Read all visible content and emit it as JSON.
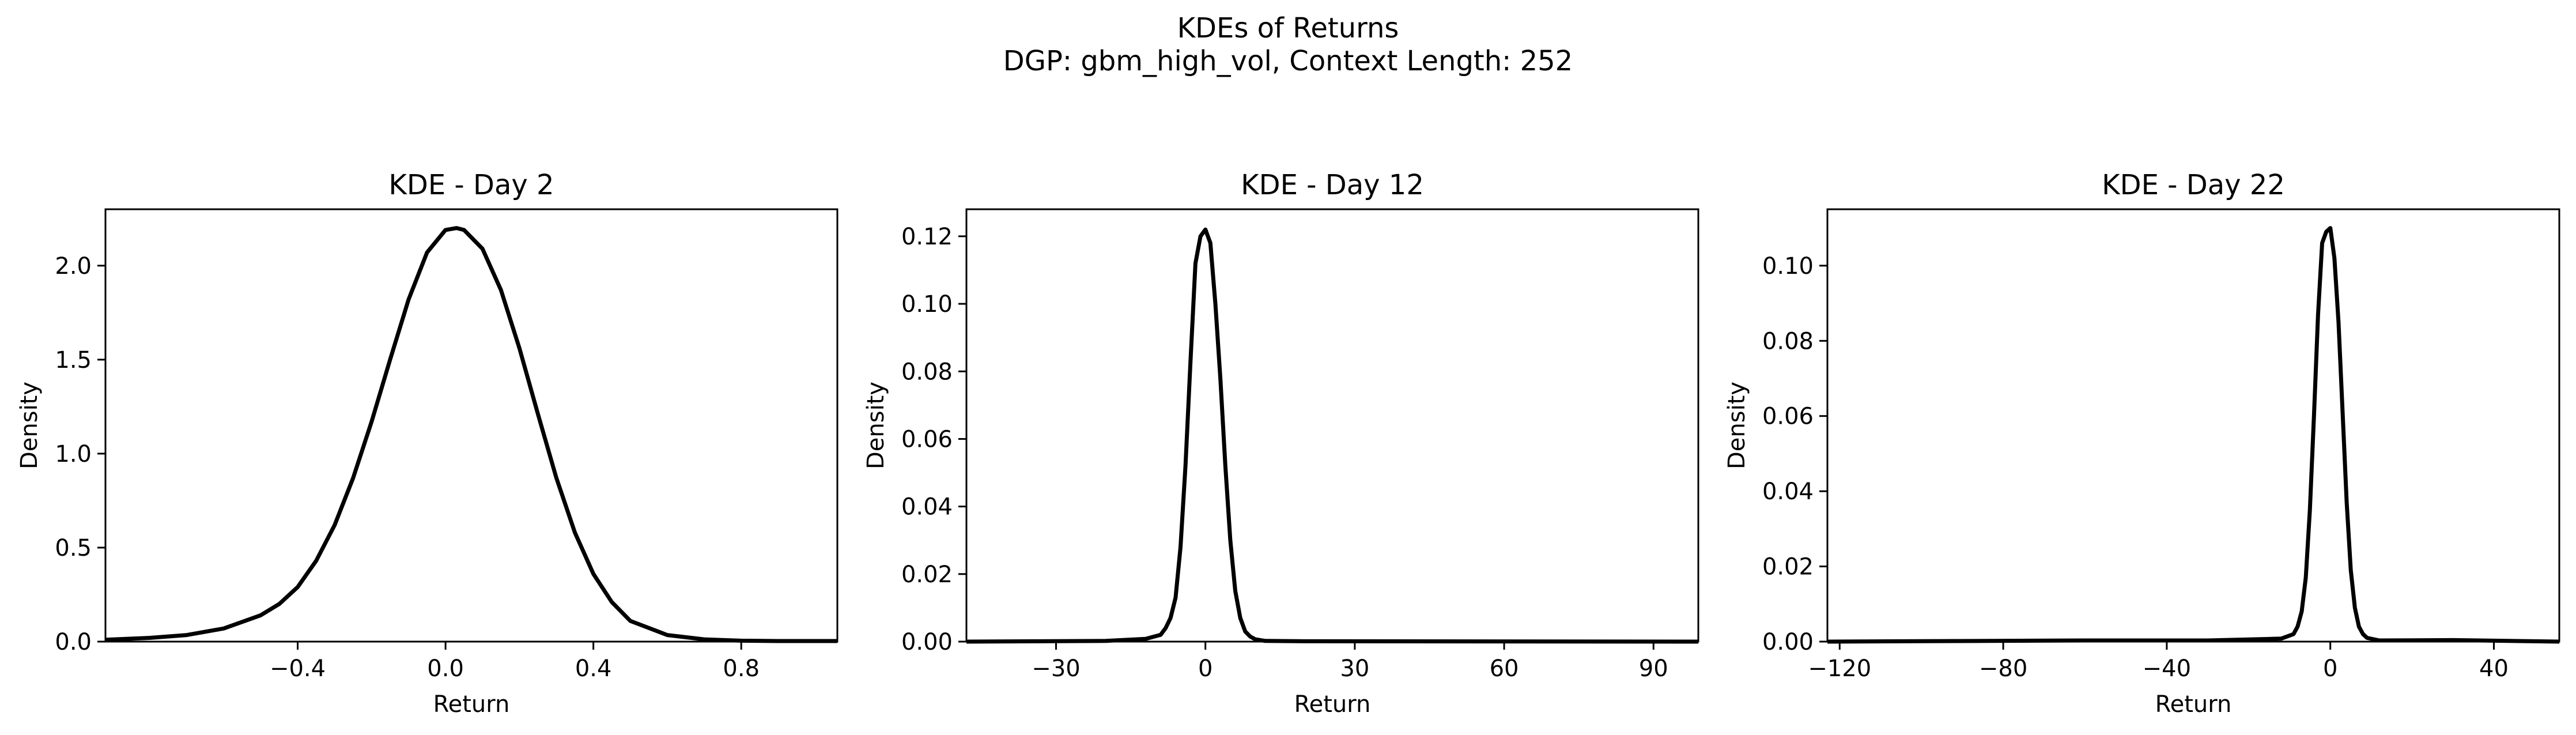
{
  "figure": {
    "title_line1": "KDEs of Returns",
    "title_line2": "DGP: gbm_high_vol, Context Length: 252"
  },
  "chart_data": [
    {
      "type": "line",
      "title": "KDE - Day 2",
      "xlabel": "Return",
      "ylabel": "Density",
      "xlim": [
        -0.92,
        1.06
      ],
      "ylim": [
        0,
        2.3
      ],
      "xticks": [
        -0.4,
        0.0,
        0.4,
        0.8
      ],
      "xtick_labels": [
        "−0.4",
        "0.0",
        "0.4",
        "0.8"
      ],
      "yticks": [
        0.0,
        0.5,
        1.0,
        1.5,
        2.0
      ],
      "ytick_labels": [
        "0.0",
        "0.5",
        "1.0",
        "1.5",
        "2.0"
      ],
      "grid": false,
      "series": [
        {
          "color": "#000000",
          "x": [
            -0.92,
            -0.8,
            -0.7,
            -0.6,
            -0.5,
            -0.45,
            -0.4,
            -0.35,
            -0.3,
            -0.25,
            -0.2,
            -0.15,
            -0.1,
            -0.05,
            0.0,
            0.03,
            0.05,
            0.1,
            0.15,
            0.2,
            0.25,
            0.3,
            0.35,
            0.4,
            0.45,
            0.5,
            0.6,
            0.7,
            0.8,
            0.9,
            1.06
          ],
          "y": [
            0.01,
            0.02,
            0.035,
            0.07,
            0.14,
            0.2,
            0.29,
            0.43,
            0.62,
            0.87,
            1.17,
            1.5,
            1.82,
            2.07,
            2.19,
            2.2,
            2.19,
            2.09,
            1.87,
            1.56,
            1.21,
            0.87,
            0.58,
            0.36,
            0.21,
            0.11,
            0.035,
            0.012,
            0.005,
            0.003,
            0.003
          ]
        }
      ]
    },
    {
      "type": "line",
      "title": "KDE - Day 12",
      "xlabel": "Return",
      "ylabel": "Density",
      "xlim": [
        -48,
        99
      ],
      "ylim": [
        0,
        0.128
      ],
      "xticks": [
        -30,
        0,
        30,
        60,
        90
      ],
      "xtick_labels": [
        "−30",
        "0",
        "30",
        "60",
        "90"
      ],
      "yticks": [
        0.0,
        0.02,
        0.04,
        0.06,
        0.08,
        0.1,
        0.12
      ],
      "ytick_labels": [
        "0.00",
        "0.02",
        "0.04",
        "0.06",
        "0.08",
        "0.10",
        "0.12"
      ],
      "grid": false,
      "series": [
        {
          "color": "#000000",
          "x": [
            -48,
            -20,
            -12,
            -9,
            -8,
            -7,
            -6,
            -5,
            -4,
            -3,
            -2,
            -1,
            0,
            1,
            2,
            3,
            4,
            5,
            6,
            7,
            8,
            9,
            10,
            12,
            20,
            99
          ],
          "y": [
            0,
            0.0002,
            0.0008,
            0.002,
            0.004,
            0.007,
            0.013,
            0.028,
            0.052,
            0.083,
            0.112,
            0.12,
            0.122,
            0.118,
            0.1,
            0.078,
            0.052,
            0.03,
            0.015,
            0.007,
            0.003,
            0.0015,
            0.0007,
            0.0002,
            0.0001,
            0
          ]
        }
      ]
    },
    {
      "type": "line",
      "title": "KDE - Day 22",
      "xlabel": "Return",
      "ylabel": "Density",
      "xlim": [
        -123,
        56
      ],
      "ylim": [
        0,
        0.115
      ],
      "xticks": [
        -120,
        -80,
        -40,
        0,
        40
      ],
      "xtick_labels": [
        "−120",
        "−80",
        "−40",
        "0",
        "40"
      ],
      "yticks": [
        0.0,
        0.02,
        0.04,
        0.06,
        0.08,
        0.1
      ],
      "ytick_labels": [
        "0.00",
        "0.02",
        "0.04",
        "0.06",
        "0.08",
        "0.10"
      ],
      "grid": false,
      "series": [
        {
          "color": "#000000",
          "x": [
            -123,
            -60,
            -30,
            -12,
            -9,
            -8,
            -7,
            -6,
            -5,
            -4,
            -3,
            -2,
            -1,
            0,
            1,
            2,
            3,
            4,
            5,
            6,
            7,
            8,
            9,
            12,
            30,
            56
          ],
          "y": [
            0,
            0.0003,
            0.0003,
            0.0008,
            0.002,
            0.004,
            0.008,
            0.017,
            0.035,
            0.06,
            0.087,
            0.106,
            0.109,
            0.11,
            0.102,
            0.085,
            0.061,
            0.037,
            0.019,
            0.009,
            0.004,
            0.002,
            0.001,
            0.0003,
            0.0004,
            0
          ]
        }
      ]
    }
  ]
}
